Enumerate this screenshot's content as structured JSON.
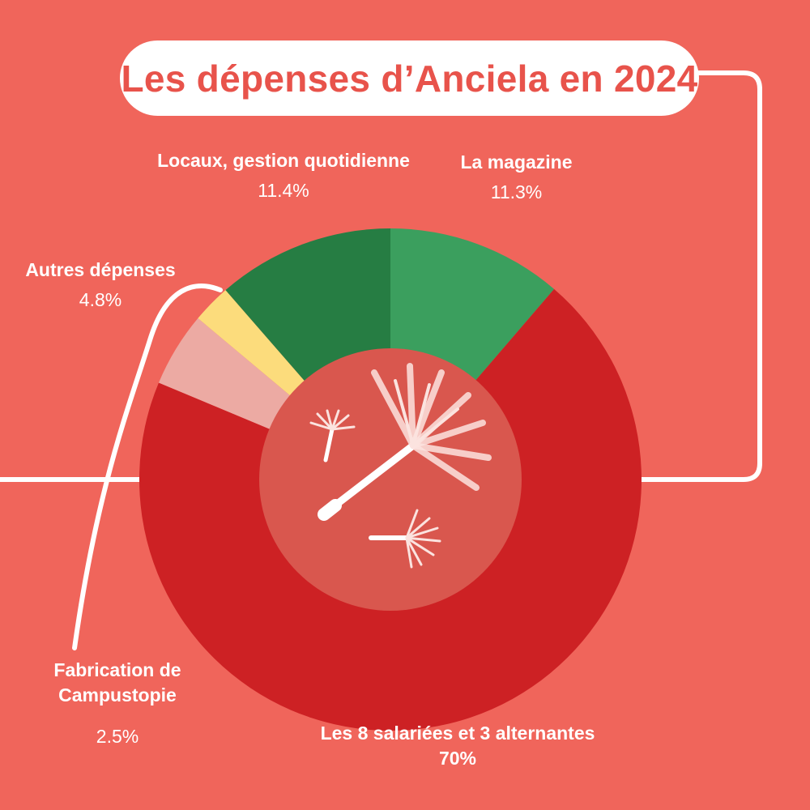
{
  "title": "Les dépenses d’Anciela en 2024",
  "colors": {
    "background": "#f0655b",
    "title_text": "#e8534b",
    "center_disc": "#d9574e",
    "line": "#ffffff"
  },
  "chart_data": {
    "type": "pie",
    "title": "Les dépenses d’Anciela en 2024",
    "unit": "%",
    "slices": [
      {
        "label": "La magazine",
        "value": 11.3,
        "value_label": "11.3%",
        "color": "#3b9f5e"
      },
      {
        "label": "Les 8 salariées et 3 alternantes",
        "value": 70,
        "value_label": "70%",
        "color": "#cd2124"
      },
      {
        "label": "Autres dépenses",
        "value": 4.8,
        "value_label": "4.8%",
        "color": "#ecaaa3"
      },
      {
        "label": "Fabrication de Campustopie",
        "value": 2.5,
        "value_label": "2.5%",
        "color": "#fcdc7c"
      },
      {
        "label": "Locaux, gestion quotidienne",
        "value": 11.4,
        "value_label": "11.4%",
        "color": "#267d43"
      }
    ],
    "labels": {
      "magazine": {
        "name": "La magazine",
        "value": "11.3%"
      },
      "salaries": {
        "name": "Les 8 salariées et 3 alternantes",
        "value": "70%"
      },
      "autres": {
        "name": "Autres dépenses",
        "value": "4.8%"
      },
      "campus": {
        "line1": "Fabrication de",
        "line2": "Campustopie",
        "value": "2.5%"
      },
      "locaux": {
        "name": "Locaux, gestion quotidienne",
        "value": "11.4%"
      }
    }
  }
}
